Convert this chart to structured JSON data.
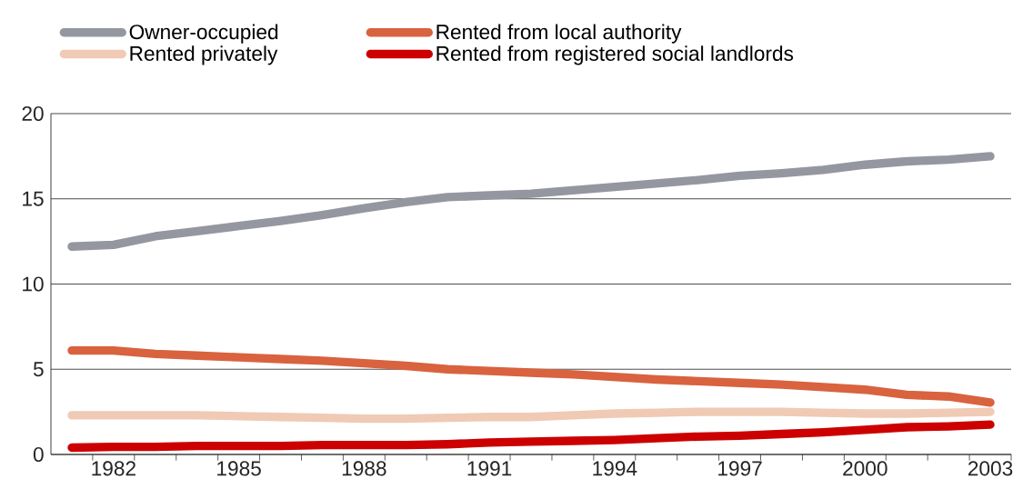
{
  "chart_data": {
    "type": "line",
    "x": [
      1981,
      1982,
      1983,
      1984,
      1985,
      1986,
      1987,
      1988,
      1989,
      1990,
      1991,
      1992,
      1993,
      1994,
      1995,
      1996,
      1997,
      1998,
      1999,
      2000,
      2001,
      2002,
      2003
    ],
    "series": [
      {
        "name": "Owner-occupied",
        "color": "#9497a0",
        "values": [
          12.2,
          12.3,
          12.8,
          13.1,
          13.4,
          13.7,
          14.05,
          14.45,
          14.8,
          15.1,
          15.2,
          15.3,
          15.5,
          15.7,
          15.9,
          16.1,
          16.35,
          16.5,
          16.7,
          17.0,
          17.2,
          17.3,
          17.5
        ]
      },
      {
        "name": "Rented from local authority",
        "color": "#d9623f",
        "values": [
          6.1,
          6.1,
          5.9,
          5.8,
          5.7,
          5.6,
          5.5,
          5.35,
          5.2,
          5.0,
          4.9,
          4.8,
          4.7,
          4.55,
          4.4,
          4.3,
          4.2,
          4.1,
          3.95,
          3.8,
          3.5,
          3.4,
          3.05
        ]
      },
      {
        "name": "Rented privately",
        "color": "#f0cab4",
        "values": [
          2.3,
          2.3,
          2.3,
          2.3,
          2.25,
          2.2,
          2.15,
          2.1,
          2.1,
          2.15,
          2.2,
          2.2,
          2.3,
          2.4,
          2.45,
          2.5,
          2.5,
          2.5,
          2.45,
          2.4,
          2.4,
          2.45,
          2.5
        ]
      },
      {
        "name": "Rented from registered social landlords",
        "color": "#cc0000",
        "values": [
          0.4,
          0.45,
          0.45,
          0.5,
          0.5,
          0.5,
          0.55,
          0.55,
          0.55,
          0.6,
          0.7,
          0.75,
          0.8,
          0.85,
          0.95,
          1.05,
          1.1,
          1.2,
          1.3,
          1.45,
          1.6,
          1.65,
          1.75
        ]
      }
    ],
    "xlim": [
      1980.5,
      2003.5
    ],
    "xticks": [
      {
        "value": 1981.5,
        "label": null
      },
      1982,
      {
        "value": 1982.5,
        "label": null
      },
      {
        "value": 1983.5,
        "label": null
      },
      {
        "value": 1984.5,
        "label": null
      },
      1985,
      {
        "value": 1985.5,
        "label": null
      },
      {
        "value": 1986.5,
        "label": null
      },
      {
        "value": 1987.5,
        "label": null
      },
      1988,
      {
        "value": 1988.5,
        "label": null
      },
      {
        "value": 1989.5,
        "label": null
      },
      {
        "value": 1990.5,
        "label": null
      },
      1991,
      {
        "value": 1991.5,
        "label": null
      },
      {
        "value": 1992.5,
        "label": null
      },
      {
        "value": 1993.5,
        "label": null
      },
      1994,
      {
        "value": 1994.5,
        "label": null
      },
      {
        "value": 1995.5,
        "label": null
      },
      {
        "value": 1996.5,
        "label": null
      },
      1997,
      {
        "value": 1997.5,
        "label": null
      },
      {
        "value": 1998.5,
        "label": null
      },
      {
        "value": 1999.5,
        "label": null
      },
      2000,
      {
        "value": 2000.5,
        "label": null
      },
      {
        "value": 2001.5,
        "label": null
      },
      {
        "value": 2002.5,
        "label": null
      },
      2003,
      {
        "value": 2003.5,
        "label": null
      }
    ],
    "ylim": [
      0,
      20
    ],
    "yticks": [
      0,
      5,
      10,
      15,
      20
    ],
    "grid": "y",
    "legend": "top",
    "marker": "none",
    "line_style": "solid"
  }
}
